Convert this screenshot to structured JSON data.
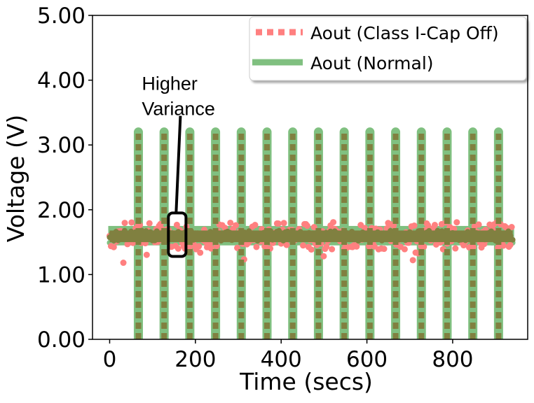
{
  "chart_data": {
    "type": "line",
    "xlabel": "Time (secs)",
    "ylabel": "Voltage (V)",
    "xlim": [
      -40,
      975
    ],
    "ylim": [
      0,
      5
    ],
    "x_ticks": [
      0,
      200,
      400,
      600,
      800
    ],
    "y_ticks": [
      0,
      1,
      2,
      3,
      4,
      5
    ],
    "x_tick_labels": [
      "0",
      "200",
      "400",
      "600",
      "800"
    ],
    "y_tick_labels": [
      "0.00",
      "1.00",
      "2.00",
      "3.00",
      "4.00",
      "5.00"
    ],
    "grid": false,
    "legend_position": "top-right",
    "x_range": [
      0,
      940
    ],
    "baseline_voltage": 1.6,
    "series": [
      {
        "name": "Aout (Class I-Cap Off)",
        "color": "#ff8080",
        "style": "dashed",
        "baseline_voltage": 1.6,
        "noise_band": [
          1.3,
          1.85
        ],
        "spikes": [
          {
            "x": 67,
            "low": 0.0,
            "high": 3.2
          },
          {
            "x": 127,
            "low": 0.0,
            "high": 3.2
          },
          {
            "x": 187,
            "low": 0.0,
            "high": 3.2
          },
          {
            "x": 247,
            "low": 0.0,
            "high": 3.2
          },
          {
            "x": 307,
            "low": 0.0,
            "high": 3.2
          },
          {
            "x": 367,
            "low": 0.0,
            "high": 3.2
          },
          {
            "x": 427,
            "low": 0.0,
            "high": 3.2
          },
          {
            "x": 487,
            "low": 0.0,
            "high": 3.2
          },
          {
            "x": 547,
            "low": 0.0,
            "high": 3.2
          },
          {
            "x": 607,
            "low": 0.0,
            "high": 3.2
          },
          {
            "x": 667,
            "low": 0.0,
            "high": 3.2
          },
          {
            "x": 727,
            "low": 0.0,
            "high": 3.2
          },
          {
            "x": 787,
            "low": 0.0,
            "high": 3.2
          },
          {
            "x": 847,
            "low": 0.0,
            "high": 3.2
          },
          {
            "x": 907,
            "low": 0.0,
            "high": 3.2
          }
        ]
      },
      {
        "name": "Aout (Normal)",
        "color": "#80c080",
        "style": "solid",
        "baseline_voltage": 1.6,
        "noise_band": [
          1.45,
          1.75
        ],
        "spikes": [
          {
            "x": 67,
            "low": 0.0,
            "high": 3.2
          },
          {
            "x": 127,
            "low": 0.0,
            "high": 3.2
          },
          {
            "x": 187,
            "low": 0.0,
            "high": 3.2
          },
          {
            "x": 247,
            "low": 0.0,
            "high": 3.2
          },
          {
            "x": 307,
            "low": 0.0,
            "high": 3.2
          },
          {
            "x": 367,
            "low": 0.0,
            "high": 3.2
          },
          {
            "x": 427,
            "low": 0.0,
            "high": 3.2
          },
          {
            "x": 487,
            "low": 0.0,
            "high": 3.2
          },
          {
            "x": 547,
            "low": 0.0,
            "high": 3.2
          },
          {
            "x": 607,
            "low": 0.0,
            "high": 3.2
          },
          {
            "x": 667,
            "low": 0.0,
            "high": 3.2
          },
          {
            "x": 727,
            "low": 0.0,
            "high": 3.2
          },
          {
            "x": 787,
            "low": 0.0,
            "high": 3.2
          },
          {
            "x": 847,
            "low": 0.0,
            "high": 3.2
          },
          {
            "x": 907,
            "low": 0.0,
            "high": 3.2
          }
        ]
      }
    ],
    "overlap_color": "#808040",
    "annotation": {
      "lines": [
        "Higher",
        "Variance"
      ],
      "box_x": [
        137,
        178
      ],
      "box_y": [
        1.28,
        1.95
      ],
      "text_anchor": {
        "x": 75,
        "y": 3.85
      },
      "arrow_from": {
        "x": 165,
        "y": 3.45
      },
      "arrow_to": {
        "x": 155,
        "y": 1.95
      }
    }
  }
}
